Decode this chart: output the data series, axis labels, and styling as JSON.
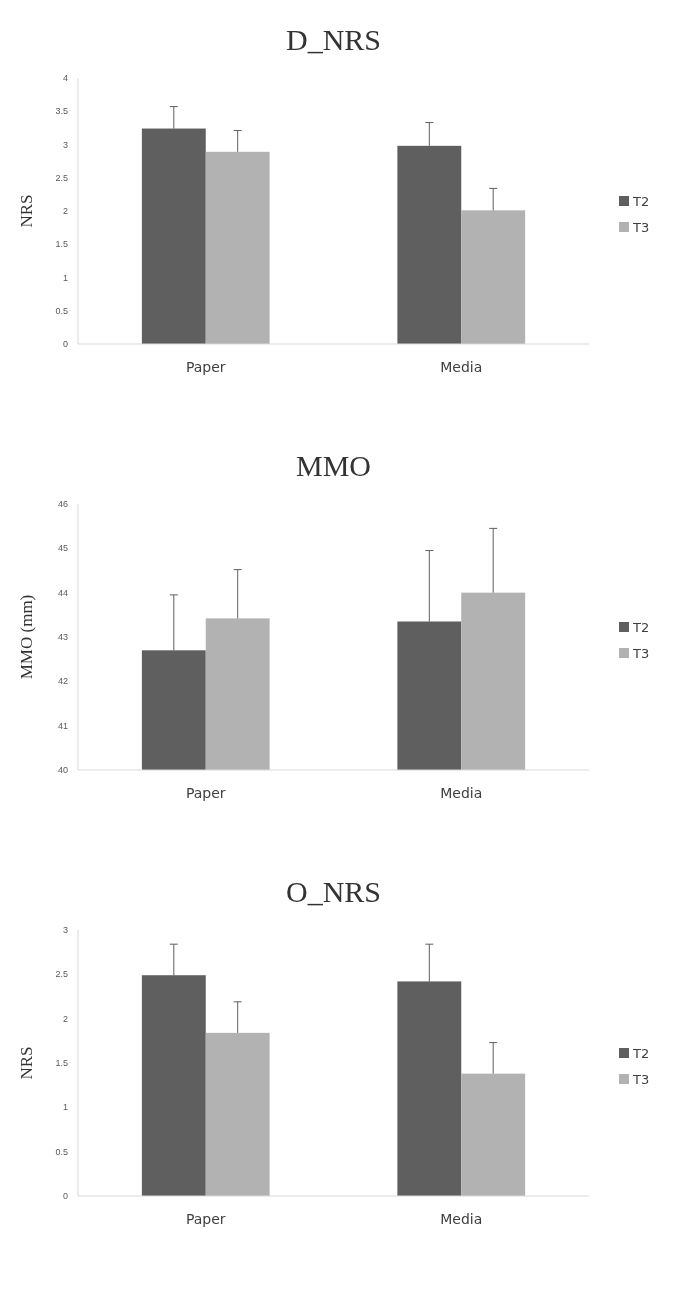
{
  "chart_data": [
    {
      "type": "bar",
      "title": "D_NRS",
      "ylabel": "NRS",
      "categories": [
        "Paper",
        "Media"
      ],
      "ylim": [
        0,
        4
      ],
      "yticks": [
        0,
        0.5,
        1,
        1.5,
        2,
        2.5,
        3,
        3.5,
        4
      ],
      "grid": false,
      "legend": "right",
      "series": [
        {
          "name": "T2",
          "color": "#5f5f5f",
          "values": [
            3.24,
            2.98
          ],
          "errors": [
            [
              3.24,
              3.57
            ],
            [
              2.98,
              3.33
            ]
          ]
        },
        {
          "name": "T3",
          "color": "#b2b2b2",
          "values": [
            2.89,
            2.01
          ],
          "errors": [
            [
              2.89,
              3.21
            ],
            [
              2.01,
              2.34
            ]
          ]
        }
      ]
    },
    {
      "type": "bar",
      "title": "MMO",
      "ylabel": "MMO (mm)",
      "categories": [
        "Paper",
        "Media"
      ],
      "ylim": [
        40,
        46
      ],
      "yticks": [
        40,
        41,
        42,
        43,
        44,
        45,
        46
      ],
      "grid": false,
      "legend": "right",
      "series": [
        {
          "name": "T2",
          "color": "#5f5f5f",
          "values": [
            42.7,
            43.35
          ],
          "errors": [
            [
              42.7,
              43.95
            ],
            [
              43.35,
              44.95
            ]
          ]
        },
        {
          "name": "T3",
          "color": "#b2b2b2",
          "values": [
            43.42,
            44.0
          ],
          "errors": [
            [
              43.42,
              44.52
            ],
            [
              44.0,
              45.45
            ]
          ]
        }
      ]
    },
    {
      "type": "bar",
      "title": "O_NRS",
      "ylabel": "NRS",
      "categories": [
        "Paper",
        "Media"
      ],
      "ylim": [
        0,
        3
      ],
      "yticks": [
        0,
        0.5,
        1,
        1.5,
        2,
        2.5,
        3
      ],
      "grid": false,
      "legend": "right",
      "series": [
        {
          "name": "T2",
          "color": "#5f5f5f",
          "values": [
            2.49,
            2.42
          ],
          "errors": [
            [
              2.49,
              2.84
            ],
            [
              2.42,
              2.84
            ]
          ]
        },
        {
          "name": "T3",
          "color": "#b2b2b2",
          "values": [
            1.84,
            1.38
          ],
          "errors": [
            [
              1.84,
              2.19
            ],
            [
              1.38,
              1.73
            ]
          ]
        }
      ]
    }
  ]
}
